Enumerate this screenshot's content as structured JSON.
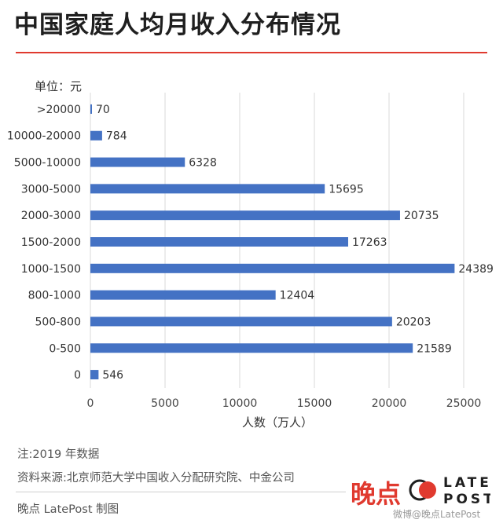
{
  "title": "中国家庭人均月收入分布情况",
  "unit_label": "单位：元",
  "chart_data": {
    "type": "bar",
    "orientation": "horizontal",
    "categories": [
      ">20000",
      "10000-20000",
      "5000-10000",
      "3000-5000",
      "2000-3000",
      "1500-2000",
      "1000-1500",
      "800-1000",
      "500-800",
      "0-500",
      "0"
    ],
    "values": [
      70,
      784,
      6328,
      15695,
      20735,
      17263,
      24389,
      12404,
      20203,
      21589,
      546
    ],
    "xlabel": "人数（万人）",
    "xlim": [
      0,
      27000
    ],
    "xticks": [
      0,
      5000,
      10000,
      15000,
      20000,
      25000
    ],
    "grid": "vertical",
    "bar_color": "#4472c4",
    "data_labels": true
  },
  "notes": {
    "note": "注:2019 年数据",
    "source": "资料来源:北京师范大学中国收入分配研究院、中金公司",
    "credit": "晚点 LatePost 制图"
  },
  "brand": {
    "name_cn": "晚点",
    "logo_line1": "LATE",
    "logo_line2": "POST",
    "accent_color": "#e03a2f"
  },
  "weibo_handle": "微博@晚点LatePost"
}
